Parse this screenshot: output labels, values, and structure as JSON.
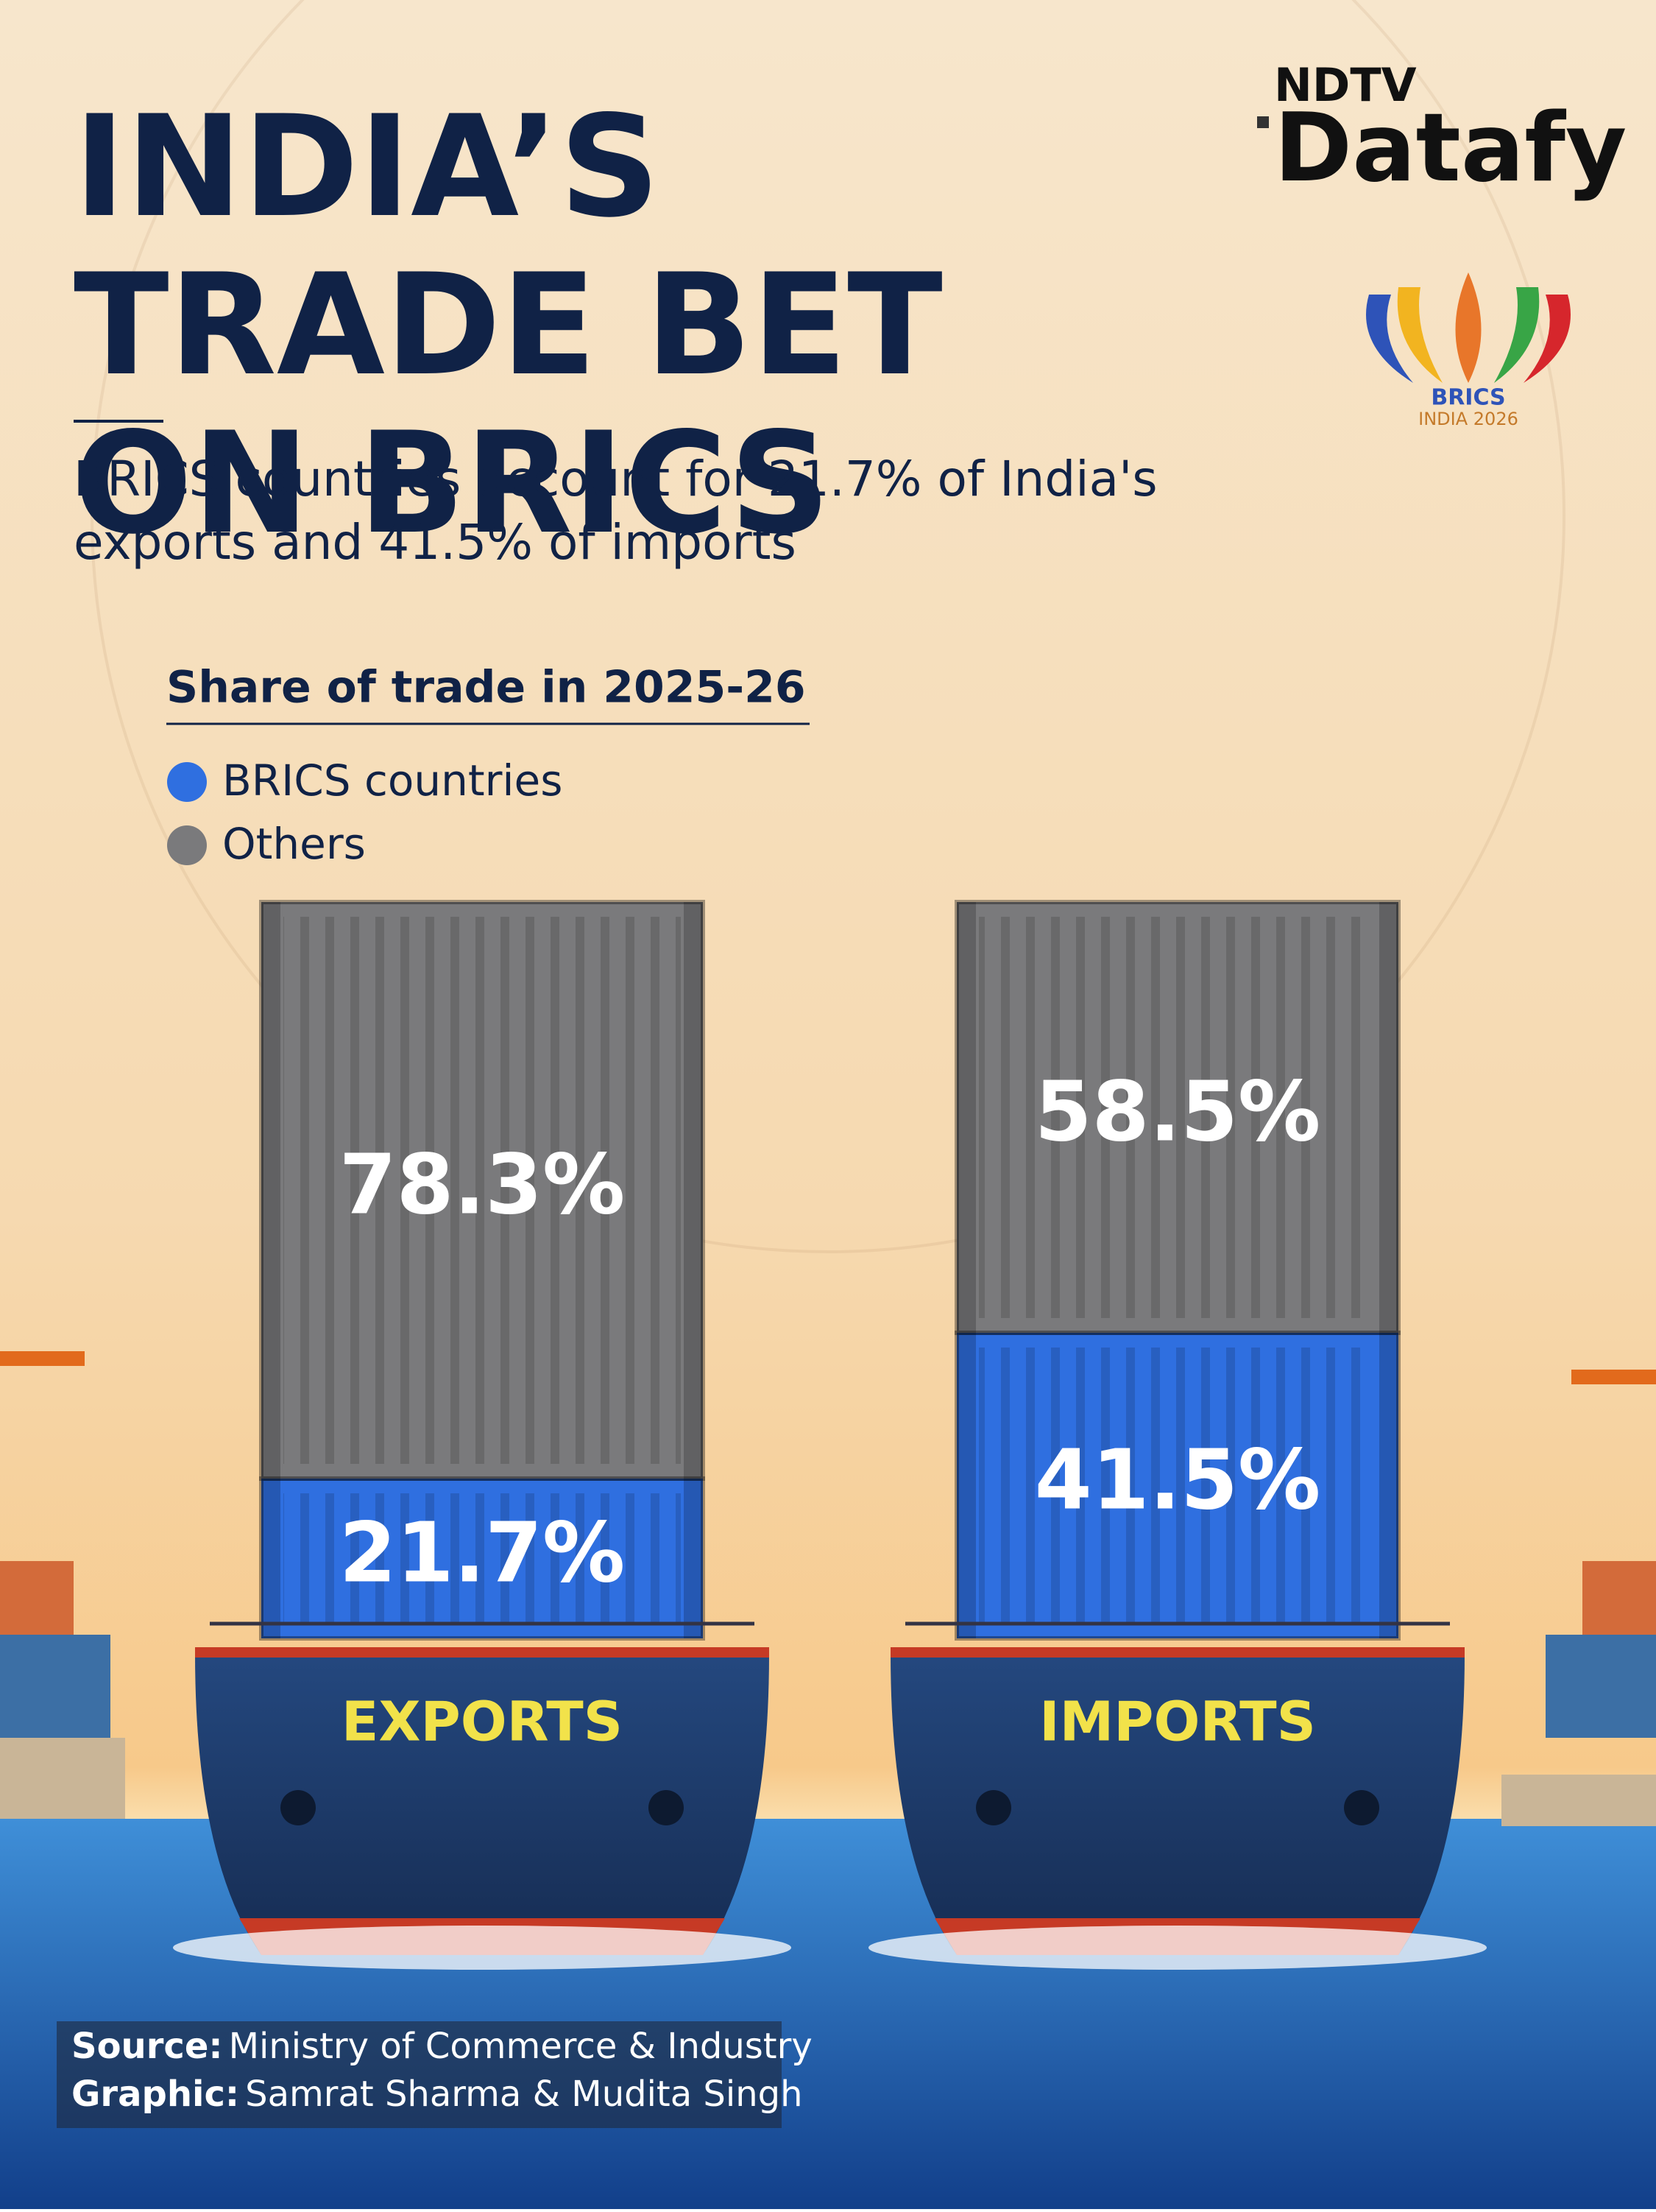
{
  "chart_data": {
    "type": "stacked_bar",
    "title": "INDIA’S TRADE BET ON BRICS",
    "subtitle": "BRICS countries account for 21.7% of India's exports and 41.5% of imports",
    "legend_title": "Share of trade in 2025-26",
    "categories": [
      "EXPORTS",
      "IMPORTS"
    ],
    "series": [
      {
        "name": "BRICS countries",
        "color": "#2f6fe0",
        "values": [
          21.7,
          41.5
        ],
        "value_labels": [
          "21.7%",
          "41.5%"
        ]
      },
      {
        "name": "Others",
        "color": "#7a7a7c",
        "values": [
          78.3,
          58.5
        ],
        "value_labels": [
          "78.3%",
          "58.5%"
        ]
      }
    ]
  },
  "logo": {
    "brand": "NDTV",
    "product": "Datafy",
    "event": "BRICS",
    "event_detail": "INDIA 2026"
  },
  "footer": {
    "source_label": "Source:",
    "source": "Ministry of Commerce & Industry",
    "graphic_label": "Graphic:",
    "graphic": "Samrat Sharma & Mudita Singh"
  }
}
